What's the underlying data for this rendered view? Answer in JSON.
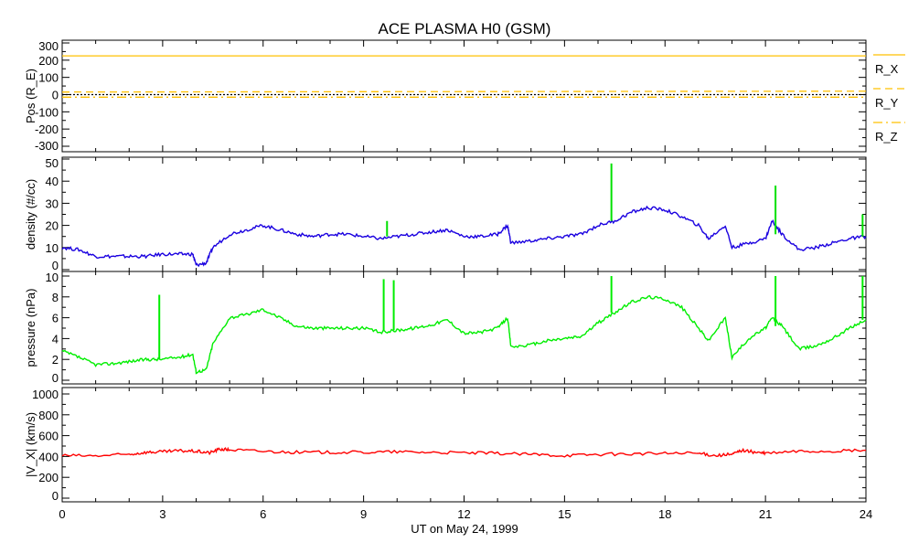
{
  "chart_data": [
    {
      "type": "line",
      "title": "ACE PLASMA H0 (GSM)",
      "ylabel": "Pos (R_E)",
      "ylim": [
        -320,
        320
      ],
      "yticks": [
        300,
        200,
        100,
        0,
        -100,
        -200,
        -300
      ],
      "legend": [
        "R_X",
        "R_Y",
        "R_Z"
      ],
      "legend_position": "right",
      "series": [
        {
          "name": "R_X",
          "x": [
            0,
            24
          ],
          "values": [
            225,
            225
          ],
          "color": "#ffc000",
          "style": "solid"
        },
        {
          "name": "R_Y",
          "x": [
            0,
            24
          ],
          "values": [
            15,
            20
          ],
          "color": "#ffc000",
          "style": "dashed"
        },
        {
          "name": "R_Z",
          "x": [
            0,
            24
          ],
          "values": [
            -15,
            -15
          ],
          "color": "#ffc000",
          "style": "dashdot"
        },
        {
          "name": "zero",
          "x": [
            0,
            24
          ],
          "values": [
            0,
            0
          ],
          "color": "#000000",
          "style": "dotted"
        }
      ]
    },
    {
      "type": "line",
      "ylabel": "density (#/cc)",
      "ylim": [
        0,
        50
      ],
      "yticks": [
        0,
        10,
        20,
        30,
        40,
        50
      ],
      "color": "#1a00e0",
      "x": [
        0,
        0.5,
        1,
        1.5,
        2,
        2.5,
        3,
        3.5,
        3.9,
        4.0,
        4.3,
        4.5,
        5,
        5.5,
        6,
        6.5,
        7,
        7.5,
        8,
        8.5,
        9,
        9.5,
        10,
        10.5,
        11,
        11.5,
        12,
        12.5,
        13,
        13.3,
        13.4,
        14,
        14.5,
        15,
        15.5,
        16,
        16.5,
        17,
        17.5,
        18,
        18.5,
        19,
        19.3,
        19.8,
        20,
        20.5,
        21,
        21.2,
        21.5,
        22,
        22.5,
        23,
        23.5,
        24
      ],
      "values": [
        10,
        9,
        6,
        6,
        6,
        6,
        7,
        7,
        7,
        2,
        3,
        10,
        16,
        18,
        20,
        18,
        16,
        15,
        16,
        16,
        15,
        14,
        15,
        16,
        17,
        18,
        15,
        15,
        16,
        20,
        12,
        13,
        14,
        15,
        16,
        20,
        22,
        26,
        28,
        27,
        24,
        20,
        14,
        20,
        10,
        12,
        14,
        22,
        16,
        9,
        10,
        12,
        14,
        15
      ],
      "spikes": {
        "x": [
          9.7,
          16.4,
          21.3,
          23.9
        ],
        "values": [
          22,
          48,
          38,
          25
        ],
        "color": "#00e000"
      }
    },
    {
      "type": "line",
      "ylabel": "pressure (nPa)",
      "ylim": [
        0,
        10
      ],
      "yticks": [
        0,
        2,
        4,
        6,
        8,
        10
      ],
      "color": "#00ee00",
      "x": [
        0,
        0.5,
        1,
        1.5,
        2,
        2.5,
        2.9,
        3.5,
        3.9,
        4.0,
        4.3,
        4.5,
        5,
        5.5,
        6,
        6.5,
        7,
        7.5,
        8,
        8.5,
        9,
        9.5,
        10,
        10.5,
        11,
        11.5,
        12,
        12.5,
        13,
        13.3,
        13.4,
        14,
        14.5,
        15,
        15.5,
        16,
        16.5,
        17,
        17.5,
        18,
        18.5,
        19,
        19.3,
        19.8,
        20,
        20.5,
        21,
        21.2,
        21.5,
        22,
        22.5,
        23,
        23.5,
        24
      ],
      "values": [
        2.8,
        2.2,
        1.5,
        1.6,
        1.8,
        2.0,
        2.0,
        2.2,
        2.5,
        0.8,
        1.0,
        3.5,
        6,
        6.3,
        6.8,
        6,
        5.2,
        5,
        5,
        5,
        5,
        4.6,
        4.8,
        5,
        5.3,
        5.8,
        4.5,
        4.6,
        5,
        6,
        3.2,
        3.4,
        3.8,
        4,
        4.2,
        5.5,
        6.5,
        7.5,
        8,
        7.8,
        7,
        5,
        3.8,
        6,
        2.2,
        4,
        5,
        6,
        5.2,
        3,
        3.3,
        4,
        5,
        5.8
      ],
      "spikes": {
        "x": [
          2.9,
          9.6,
          9.9,
          16.4,
          21.3,
          23.9
        ],
        "values": [
          8.2,
          9.7,
          9.6,
          10,
          10,
          10
        ]
      }
    },
    {
      "type": "line",
      "ylabel": "|V_X| (km/s)",
      "ylim": [
        0,
        1000
      ],
      "yticks": [
        0,
        200,
        400,
        600,
        800,
        1000
      ],
      "color": "#ff0000",
      "x": [
        0,
        1,
        2,
        2.5,
        3,
        3.5,
        4,
        4.4,
        4.7,
        5,
        6,
        7,
        8,
        9,
        10,
        11,
        12,
        13,
        14,
        15,
        16,
        17,
        18,
        19,
        19.5,
        20,
        20.3,
        20.7,
        21,
        22,
        23,
        24
      ],
      "values": [
        410,
        405,
        420,
        440,
        445,
        455,
        450,
        435,
        470,
        465,
        450,
        440,
        440,
        440,
        445,
        440,
        435,
        430,
        420,
        410,
        420,
        425,
        430,
        430,
        410,
        420,
        460,
        440,
        430,
        450,
        450,
        460
      ]
    }
  ],
  "xaxis": {
    "label": "UT on May 24, 1999",
    "xlim": [
      0,
      24
    ],
    "ticks": [
      "0",
      "3",
      "6",
      "9",
      "12",
      "15",
      "18",
      "21",
      "24"
    ]
  }
}
